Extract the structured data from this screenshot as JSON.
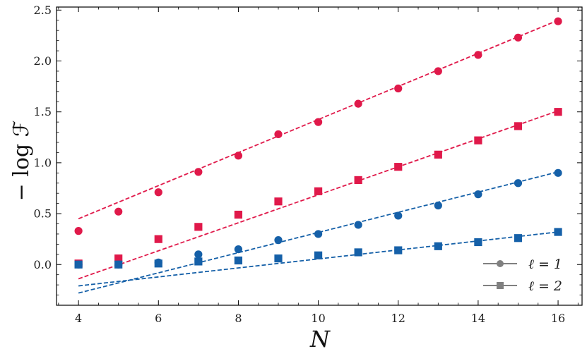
{
  "chart_data": {
    "type": "scatter",
    "xlabel": "N",
    "ylabel": "− log ℱ",
    "xlim": [
      3.45,
      16.6
    ],
    "ylim": [
      -0.4,
      2.53
    ],
    "xticks": [
      4,
      6,
      8,
      10,
      12,
      14,
      16
    ],
    "yticks": [
      0.0,
      0.5,
      1.0,
      1.5,
      2.0,
      2.5
    ],
    "xtick_labels": [
      "4",
      "6",
      "8",
      "10",
      "12",
      "14",
      "16"
    ],
    "ytick_labels": [
      "0.0",
      "0.5",
      "1.0",
      "1.5",
      "2.0",
      "2.5"
    ],
    "grid": false,
    "legend_position": "bottom-right",
    "legend": [
      {
        "label": "ℓ = 1",
        "marker": "circle",
        "color": "#808080"
      },
      {
        "label": "ℓ = 2",
        "marker": "square",
        "color": "#808080"
      }
    ],
    "series": [
      {
        "marker": "circle",
        "color": "#e0194a",
        "x": [
          4,
          5,
          6,
          7,
          8,
          9,
          10,
          11,
          12,
          13,
          14,
          15,
          16
        ],
        "y": [
          0.33,
          0.52,
          0.71,
          0.91,
          1.07,
          1.28,
          1.4,
          1.58,
          1.73,
          1.9,
          2.06,
          2.23,
          2.39
        ],
        "fit": {
          "x": [
            4,
            16
          ],
          "y": [
            0.45,
            2.4
          ]
        }
      },
      {
        "marker": "square",
        "color": "#e0194a",
        "x": [
          4,
          5,
          6,
          7,
          8,
          9,
          10,
          11,
          12,
          13,
          14,
          15,
          16
        ],
        "y": [
          0.01,
          0.06,
          0.25,
          0.37,
          0.49,
          0.62,
          0.72,
          0.83,
          0.96,
          1.08,
          1.22,
          1.36,
          1.5
        ],
        "fit": {
          "x": [
            4,
            16
          ],
          "y": [
            -0.14,
            1.51
          ]
        }
      },
      {
        "marker": "circle",
        "color": "#1560a8",
        "x": [
          4,
          5,
          6,
          7,
          8,
          9,
          10,
          11,
          12,
          13,
          14,
          15,
          16
        ],
        "y": [
          0.0,
          0.0,
          0.02,
          0.1,
          0.15,
          0.24,
          0.3,
          0.39,
          0.48,
          0.58,
          0.69,
          0.8,
          0.9
        ],
        "fit": {
          "x": [
            4,
            16
          ],
          "y": [
            -0.28,
            0.91
          ]
        }
      },
      {
        "marker": "square",
        "color": "#1560a8",
        "x": [
          4,
          5,
          6,
          7,
          8,
          9,
          10,
          11,
          12,
          13,
          14,
          15,
          16
        ],
        "y": [
          0.0,
          0.0,
          0.01,
          0.03,
          0.04,
          0.06,
          0.09,
          0.12,
          0.14,
          0.18,
          0.22,
          0.26,
          0.32
        ],
        "fit": {
          "x": [
            4,
            16
          ],
          "y": [
            -0.21,
            0.32
          ]
        }
      }
    ]
  }
}
